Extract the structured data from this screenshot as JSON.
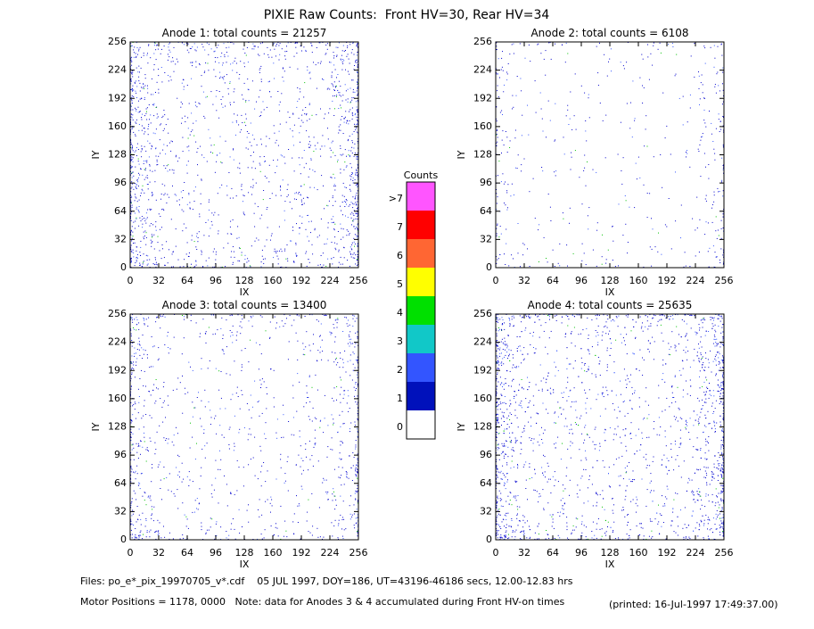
{
  "title": "PIXIE Raw Counts:  Front HV=30, Rear HV=34",
  "chart_data": [
    {
      "type": "heatmap",
      "title": "Anode 1: total counts =",
      "total_counts": 21257,
      "xlabel": "IX",
      "ylabel": "IY",
      "xlim": [
        0,
        256
      ],
      "ylim": [
        0,
        256
      ],
      "xticks": [
        0,
        32,
        64,
        96,
        128,
        160,
        192,
        224,
        256
      ],
      "yticks": [
        0,
        32,
        64,
        96,
        128,
        160,
        192,
        224,
        256
      ]
    },
    {
      "type": "heatmap",
      "title": "Anode 2: total counts =",
      "total_counts": 6108,
      "xlabel": "IX",
      "ylabel": "IY",
      "xlim": [
        0,
        256
      ],
      "ylim": [
        0,
        256
      ],
      "xticks": [
        0,
        32,
        64,
        96,
        128,
        160,
        192,
        224,
        256
      ],
      "yticks": [
        0,
        32,
        64,
        96,
        128,
        160,
        192,
        224,
        256
      ]
    },
    {
      "type": "heatmap",
      "title": "Anode 3: total counts =",
      "total_counts": 13400,
      "xlabel": "IX",
      "ylabel": "IY",
      "xlim": [
        0,
        256
      ],
      "ylim": [
        0,
        256
      ],
      "xticks": [
        0,
        32,
        64,
        96,
        128,
        160,
        192,
        224,
        256
      ],
      "yticks": [
        0,
        32,
        64,
        96,
        128,
        160,
        192,
        224,
        256
      ]
    },
    {
      "type": "heatmap",
      "title": "Anode 4: total counts =",
      "total_counts": 25635,
      "xlabel": "IX",
      "ylabel": "IY",
      "xlim": [
        0,
        256
      ],
      "ylim": [
        0,
        256
      ],
      "xticks": [
        0,
        32,
        64,
        96,
        128,
        160,
        192,
        224,
        256
      ],
      "yticks": [
        0,
        32,
        64,
        96,
        128,
        160,
        192,
        224,
        256
      ]
    }
  ],
  "colorbar": {
    "title": "Counts",
    "categories": [
      "0",
      "1",
      "2",
      "3",
      "4",
      "5",
      "6",
      "7",
      ">7"
    ],
    "colors": [
      "#ffffff",
      "#0011bb",
      "#3355ff",
      "#11c8c8",
      "#00e000",
      "#ffff00",
      "#ff6633",
      "#ff0000",
      "#ff55ff"
    ]
  },
  "footer": {
    "files": "Files: po_e*_pix_19970705_v*.cdf    05 JUL 1997, DOY=186, UT=43196-46186 secs, 12.00-12.83 hrs",
    "motor": "Motor Positions = 1178, 0000   Note: data for Anodes 3 & 4 accumulated during Front HV-on times",
    "printed": "(printed: 16-Jul-1997 17:49:37.00)"
  }
}
